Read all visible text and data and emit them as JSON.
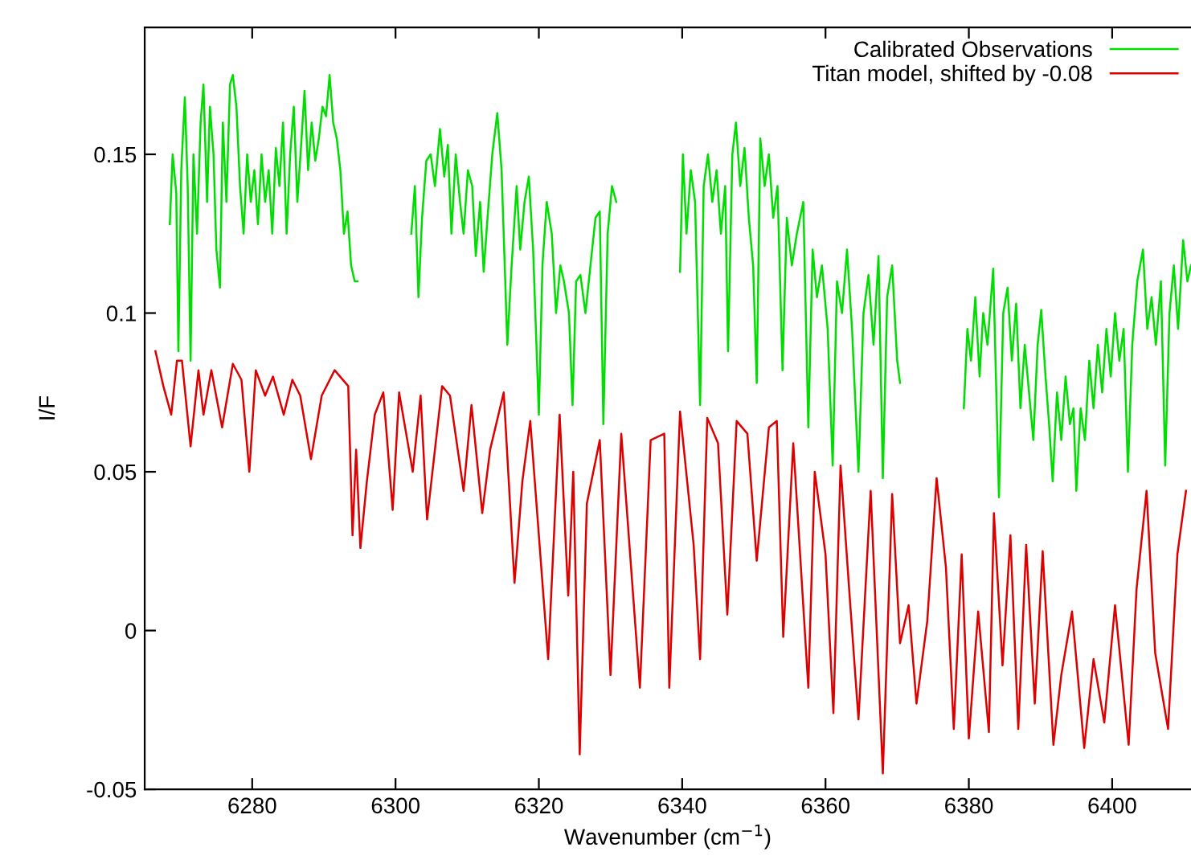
{
  "chart_data": {
    "type": "line",
    "xlabel": "Wavenumber (cm$^{−1}$)",
    "ylabel": "I/F",
    "xlim": [
      6265,
      6411
    ],
    "xticks": [
      6280,
      6300,
      6320,
      6340,
      6360,
      6380,
      6400
    ],
    "ylim": [
      -0.05,
      0.19
    ],
    "yticks": [
      -0.05,
      0,
      0.05,
      0.1,
      0.15
    ],
    "grid": false,
    "legend": "top right",
    "line_style": "solid",
    "marker": "none",
    "series": [
      {
        "name": "Calibrated Observations",
        "color": "#00dd00",
        "x": [
          6268.5,
          6268.9,
          6269.4,
          6269.7,
          6270.1,
          6270.6,
          6271.0,
          6271.4,
          6271.8,
          6272.3,
          6272.8,
          6273.2,
          6273.7,
          6274.1,
          6274.6,
          6275.0,
          6275.5,
          6275.9,
          6276.4,
          6276.9,
          6277.3,
          6277.8,
          6278.3,
          6278.8,
          6279.3,
          6279.8,
          6280.3,
          6280.8,
          6281.3,
          6281.8,
          6282.3,
          6282.8,
          6283.3,
          6283.8,
          6284.3,
          6284.8,
          6285.3,
          6285.8,
          6286.3,
          6286.8,
          6287.3,
          6287.8,
          6288.3,
          6288.8,
          6289.3,
          6289.8,
          6290.3,
          6290.8,
          6291.3,
          6291.8,
          6292.3,
          6292.8,
          6293.3,
          6293.8,
          6294.3,
          6294.7,
          6298.5,
          6302.2,
          6302.7,
          6303.2,
          6303.7,
          6304.3,
          6304.9,
          6305.5,
          6306.2,
          6306.8,
          6307.3,
          6307.8,
          6308.4,
          6309.0,
          6309.5,
          6310.1,
          6310.7,
          6311.2,
          6311.8,
          6312.3,
          6312.9,
          6313.5,
          6314.2,
          6314.8,
          6315.6,
          6316.2,
          6316.9,
          6317.4,
          6318.0,
          6318.6,
          6319.2,
          6320.0,
          6320.5,
          6321.1,
          6321.8,
          6322.4,
          6323.0,
          6323.5,
          6324.2,
          6324.7,
          6325.2,
          6325.8,
          6326.5,
          6327.2,
          6327.9,
          6328.5,
          6329.0,
          6329.6,
          6330.2,
          6330.8,
          6335.0,
          6339.7,
          6340.1,
          6340.6,
          6341.2,
          6341.8,
          6342.5,
          6343.0,
          6343.6,
          6344.2,
          6344.8,
          6345.4,
          6346.0,
          6346.4,
          6347.0,
          6347.5,
          6348.1,
          6348.7,
          6349.3,
          6349.9,
          6350.4,
          6350.9,
          6351.5,
          6352.1,
          6352.7,
          6353.3,
          6354.0,
          6354.6,
          6355.3,
          6356.0,
          6356.9,
          6357.6,
          6358.2,
          6358.8,
          6359.5,
          6360.3,
          6361.0,
          6361.6,
          6362.3,
          6363.0,
          6363.7,
          6364.6,
          6365.3,
          6366.0,
          6366.7,
          6367.4,
          6368.0,
          6368.6,
          6369.3,
          6370.0,
          6370.4,
          6375.0,
          6379.3,
          6379.8,
          6380.3,
          6380.9,
          6381.5,
          6382.0,
          6382.6,
          6383.4,
          6384.2,
          6384.8,
          6385.4,
          6386.0,
          6386.6,
          6387.2,
          6387.8,
          6388.4,
          6389.0,
          6389.6,
          6390.1,
          6390.7,
          6391.2,
          6391.7,
          6392.3,
          6392.9,
          6393.5,
          6394.1,
          6394.6,
          6395.0,
          6395.6,
          6396.2,
          6396.8,
          6397.4,
          6398.0,
          6398.6,
          6399.2,
          6399.8,
          6400.4,
          6401.0,
          6401.6,
          6402.2,
          6402.8,
          6403.5,
          6404.3,
          6404.9,
          6405.5,
          6406.1,
          6406.8,
          6407.4,
          6408.0,
          6408.6,
          6409.2,
          6409.9,
          6410.5,
          6411.0
        ],
        "values": [
          0.128,
          0.15,
          0.138,
          0.088,
          0.145,
          0.168,
          0.14,
          0.085,
          0.15,
          0.125,
          0.16,
          0.172,
          0.135,
          0.165,
          0.15,
          0.12,
          0.108,
          0.16,
          0.135,
          0.172,
          0.175,
          0.165,
          0.14,
          0.125,
          0.15,
          0.135,
          0.145,
          0.128,
          0.15,
          0.135,
          0.145,
          0.125,
          0.152,
          0.14,
          0.16,
          0.125,
          0.15,
          0.165,
          0.135,
          0.152,
          0.17,
          0.145,
          0.16,
          0.148,
          0.155,
          0.165,
          0.162,
          0.175,
          0.16,
          0.155,
          0.145,
          0.125,
          0.132,
          0.115,
          0.11,
          0.11,
          null,
          0.125,
          0.14,
          0.105,
          0.13,
          0.148,
          0.15,
          0.14,
          0.158,
          0.143,
          0.153,
          0.125,
          0.15,
          0.135,
          0.125,
          0.145,
          0.14,
          0.118,
          0.135,
          0.113,
          0.132,
          0.15,
          0.163,
          0.145,
          0.09,
          0.115,
          0.14,
          0.12,
          0.135,
          0.143,
          0.12,
          0.068,
          0.115,
          0.135,
          0.125,
          0.1,
          0.115,
          0.11,
          0.1,
          0.071,
          0.11,
          0.112,
          0.1,
          0.115,
          0.13,
          0.132,
          0.065,
          0.125,
          0.14,
          0.135,
          null,
          0.113,
          0.15,
          0.125,
          0.145,
          0.135,
          0.071,
          0.14,
          0.15,
          0.135,
          0.145,
          0.125,
          0.14,
          0.088,
          0.15,
          0.16,
          0.14,
          0.152,
          0.13,
          0.115,
          0.078,
          0.155,
          0.14,
          0.15,
          0.13,
          0.14,
          0.082,
          0.13,
          0.115,
          0.125,
          0.135,
          0.064,
          0.12,
          0.105,
          0.115,
          0.095,
          0.052,
          0.11,
          0.1,
          0.12,
          0.095,
          0.05,
          0.1,
          0.112,
          0.09,
          0.118,
          0.048,
          0.105,
          0.115,
          0.085,
          0.078,
          null,
          0.07,
          0.095,
          0.085,
          0.105,
          0.08,
          0.1,
          0.09,
          0.114,
          0.042,
          0.1,
          0.108,
          0.085,
          0.103,
          0.07,
          0.09,
          0.075,
          0.06,
          0.09,
          0.101,
          0.08,
          0.065,
          0.047,
          0.075,
          0.06,
          0.08,
          0.065,
          0.07,
          0.044,
          0.07,
          0.06,
          0.085,
          0.07,
          0.09,
          0.075,
          0.095,
          0.08,
          0.1,
          0.085,
          0.095,
          0.05,
          0.09,
          0.11,
          0.12,
          0.095,
          0.105,
          0.09,
          0.11,
          0.052,
          0.1,
          0.115,
          0.095,
          0.123,
          0.11,
          0.115
        ]
      },
      {
        "name": "Titan model, shifted by -0.08",
        "color": "#dd0000",
        "x": [
          6266.5,
          6267.6,
          6268.7,
          6269.5,
          6270.2,
          6271.4,
          6272.5,
          6273.2,
          6274.3,
          6275.8,
          6277.3,
          6278.5,
          6279.6,
          6280.5,
          6281.8,
          6282.9,
          6284.4,
          6285.6,
          6286.7,
          6288.2,
          6289.7,
          6291.5,
          6293.4,
          6294.0,
          6294.5,
          6295.1,
          6296.0,
          6297.1,
          6298.3,
          6299.6,
          6300.5,
          6302.4,
          6303.5,
          6304.4,
          6306.5,
          6307.6,
          6309.5,
          6310.6,
          6312.1,
          6313.2,
          6315.1,
          6316.6,
          6317.7,
          6318.8,
          6321.3,
          6322.9,
          6324.1,
          6324.8,
          6325.7,
          6326.7,
          6328.5,
          6330.0,
          6331.5,
          6334.1,
          6335.6,
          6337.5,
          6338.2,
          6339.7,
          6341.6,
          6342.5,
          6343.5,
          6345.0,
          6346.3,
          6347.6,
          6349.1,
          6350.4,
          6352.1,
          6353.2,
          6354.1,
          6355.5,
          6357.6,
          6358.5,
          6360.0,
          6361.1,
          6362.1,
          6363.3,
          6364.6,
          6366.3,
          6368.0,
          6369.3,
          6370.4,
          6371.6,
          6372.7,
          6374.2,
          6375.5,
          6376.8,
          6377.9,
          6379.0,
          6380.0,
          6381.3,
          6382.8,
          6383.5,
          6384.7,
          6385.8,
          6386.9,
          6388.0,
          6389.2,
          6390.3,
          6391.8,
          6392.9,
          6394.4,
          6396.1,
          6397.4,
          6398.9,
          6400.4,
          6402.3,
          6403.4,
          6404.8,
          6406.0,
          6407.8,
          6409.1,
          6410.3
        ],
        "values": [
          0.088,
          0.077,
          0.068,
          0.085,
          0.085,
          0.058,
          0.082,
          0.068,
          0.082,
          0.064,
          0.084,
          0.079,
          0.05,
          0.082,
          0.074,
          0.08,
          0.068,
          0.079,
          0.074,
          0.054,
          0.074,
          0.082,
          0.077,
          0.03,
          0.057,
          0.026,
          0.047,
          0.068,
          0.075,
          0.038,
          0.075,
          0.05,
          0.074,
          0.035,
          0.077,
          0.074,
          0.044,
          0.071,
          0.037,
          0.057,
          0.075,
          0.015,
          0.047,
          0.066,
          -0.009,
          0.068,
          0.011,
          0.05,
          -0.039,
          0.04,
          0.06,
          -0.014,
          0.062,
          -0.018,
          0.06,
          0.062,
          -0.018,
          0.069,
          0.027,
          -0.009,
          0.067,
          0.059,
          0.005,
          0.066,
          0.062,
          0.022,
          0.064,
          0.066,
          -0.002,
          0.059,
          -0.018,
          0.05,
          0.024,
          -0.026,
          0.052,
          0.013,
          -0.028,
          0.044,
          -0.045,
          0.043,
          -0.004,
          0.008,
          -0.023,
          0.003,
          0.048,
          0.02,
          -0.031,
          0.024,
          -0.034,
          0.006,
          -0.032,
          0.037,
          -0.011,
          0.03,
          -0.031,
          0.027,
          -0.023,
          0.025,
          -0.036,
          -0.014,
          0.006,
          -0.037,
          -0.009,
          -0.029,
          0.008,
          -0.036,
          0.013,
          0.044,
          -0.007,
          -0.031,
          0.024,
          0.044
        ]
      }
    ]
  }
}
